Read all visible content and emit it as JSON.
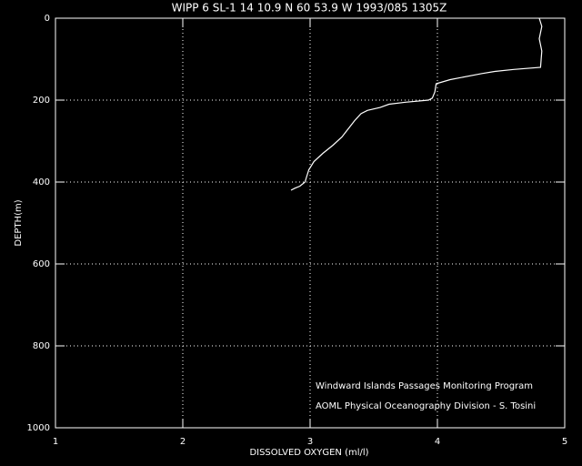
{
  "chart_data": {
    "type": "line",
    "title": "WIPP 6 SL-1  14 10.9 N  60 53.9 W  1993/085 1305Z",
    "x_label": "DISSOLVED OXYGEN (ml/l)",
    "y_label": "DEPTH(m)",
    "annotations": [
      "Windward Islands Passages Monitoring Program",
      "AOML Physical Oceanography Division - S. Tosini"
    ],
    "xlim": [
      1,
      5
    ],
    "xticks": [
      1,
      2,
      3,
      4,
      5
    ],
    "ylim": [
      0,
      1000
    ],
    "yticks": [
      0,
      200,
      400,
      600,
      800,
      1000
    ],
    "y_inverted": true,
    "grid": true,
    "series": [
      {
        "color": "#ffffff",
        "x": [
          4.8,
          4.82,
          4.8,
          4.82,
          4.81,
          4.6,
          4.45,
          4.35,
          4.1,
          3.99,
          3.98,
          3.96,
          3.93,
          3.75,
          3.62,
          3.55,
          3.45,
          3.4,
          3.35,
          3.3,
          3.25,
          3.18,
          3.1,
          3.03,
          2.99,
          2.97,
          2.96,
          2.92,
          2.88,
          2.85
        ],
        "y": [
          0,
          20,
          50,
          80,
          120,
          125,
          130,
          135,
          150,
          160,
          180,
          195,
          200,
          205,
          210,
          218,
          225,
          233,
          250,
          270,
          290,
          310,
          330,
          350,
          370,
          390,
          400,
          410,
          415,
          420
        ]
      }
    ]
  }
}
